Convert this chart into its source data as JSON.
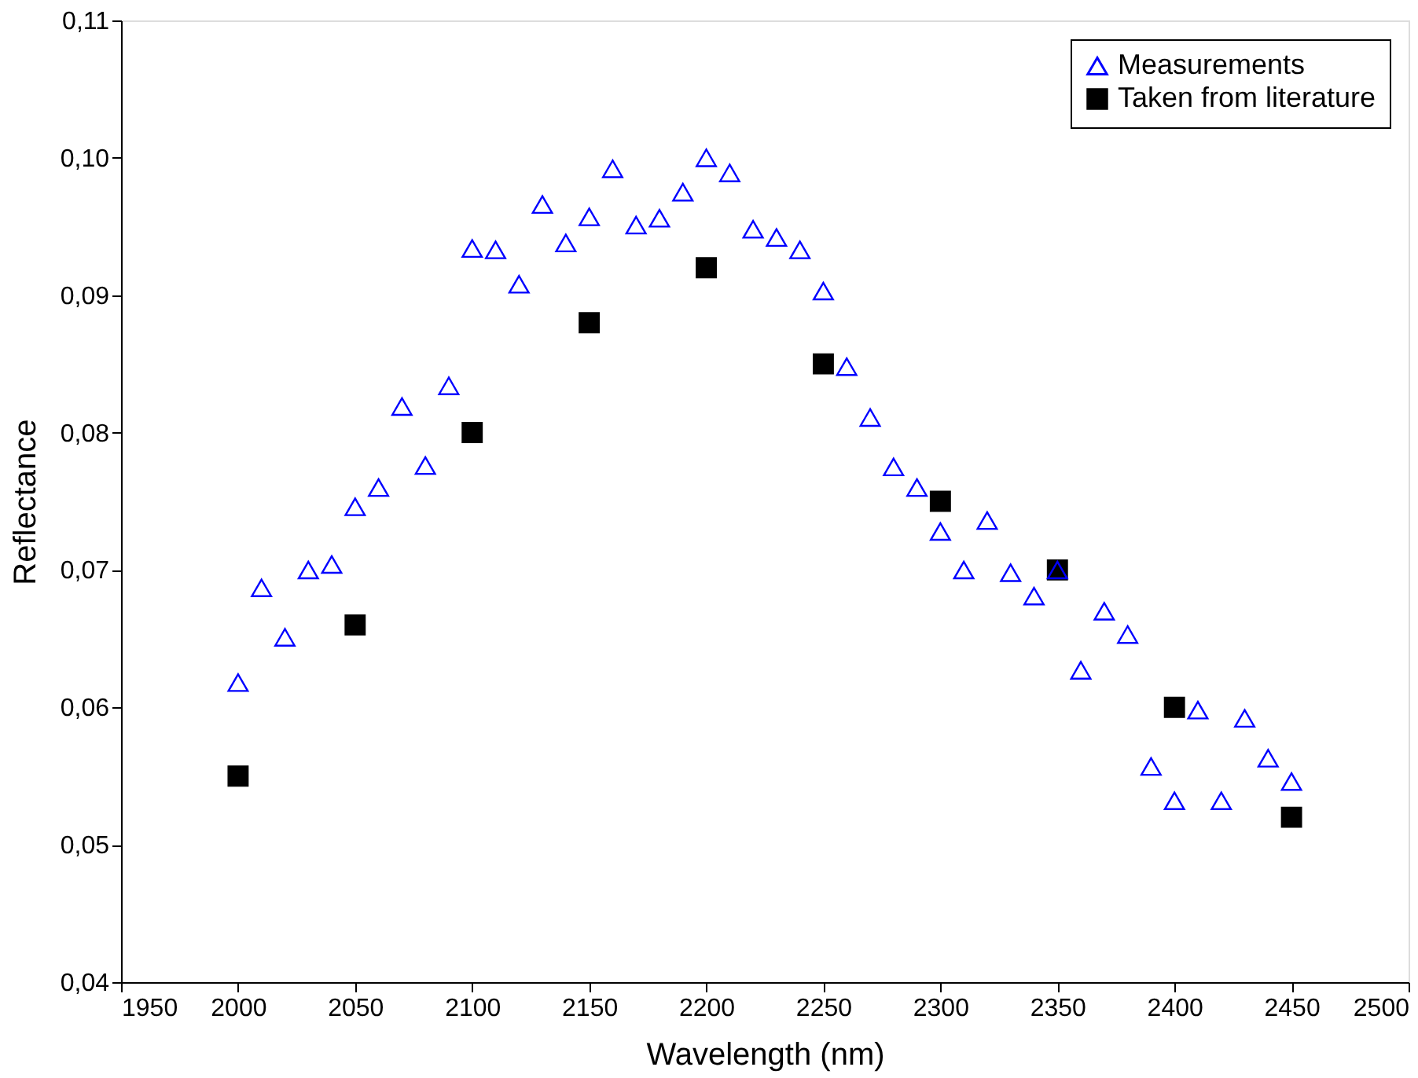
{
  "chart_data": {
    "type": "scatter",
    "xlabel": "Wavelength (nm)",
    "ylabel": "Reflectance",
    "xlim": [
      1950,
      2500
    ],
    "xticks": [
      1950,
      2000,
      2050,
      2100,
      2150,
      2200,
      2250,
      2300,
      2350,
      2400,
      2450,
      2500
    ],
    "ylim": [
      0.04,
      0.11
    ],
    "yticks": [
      {
        "value": 0.04,
        "label": "0,04"
      },
      {
        "value": 0.05,
        "label": "0,05"
      },
      {
        "value": 0.06,
        "label": "0,06"
      },
      {
        "value": 0.07,
        "label": "0,07"
      },
      {
        "value": 0.08,
        "label": "0,08"
      },
      {
        "value": 0.09,
        "label": "0,09"
      },
      {
        "value": 0.1,
        "label": "0,10"
      },
      {
        "value": 0.11,
        "label": "0,11"
      }
    ],
    "grid": false,
    "legend": "top right",
    "series": [
      {
        "name": "Measurements",
        "color": "#0000ff",
        "marker": "triangle",
        "x": [
          2000,
          2010,
          2020,
          2030,
          2040,
          2050,
          2060,
          2070,
          2080,
          2090,
          2100,
          2110,
          2120,
          2130,
          2140,
          2150,
          2160,
          2170,
          2180,
          2190,
          2200,
          2210,
          2220,
          2230,
          2240,
          2250,
          2260,
          2270,
          2280,
          2290,
          2300,
          2310,
          2320,
          2330,
          2340,
          2350,
          2360,
          2370,
          2380,
          2390,
          2400,
          2410,
          2420,
          2430,
          2440,
          2450
        ],
        "values": [
          0.0618,
          0.0687,
          0.0651,
          0.07,
          0.0704,
          0.0746,
          0.076,
          0.0819,
          0.0776,
          0.0834,
          0.0934,
          0.0933,
          0.0908,
          0.0966,
          0.0938,
          0.0957,
          0.0992,
          0.0951,
          0.0956,
          0.0975,
          0.1,
          0.0989,
          0.0948,
          0.0942,
          0.0933,
          0.0903,
          0.0848,
          0.0811,
          0.0775,
          0.076,
          0.0728,
          0.07,
          0.0736,
          0.0698,
          0.0681,
          0.07,
          0.0627,
          0.067,
          0.0653,
          0.0557,
          0.0532,
          0.0598,
          0.0532,
          0.0592,
          0.0563,
          0.0546
        ]
      },
      {
        "name": "Taken from literature",
        "color": "#000000",
        "marker": "square",
        "x": [
          2000,
          2050,
          2100,
          2150,
          2200,
          2250,
          2300,
          2350,
          2400,
          2450
        ],
        "values": [
          0.055,
          0.066,
          0.08,
          0.088,
          0.092,
          0.085,
          0.075,
          0.07,
          0.06,
          0.052
        ]
      }
    ]
  }
}
